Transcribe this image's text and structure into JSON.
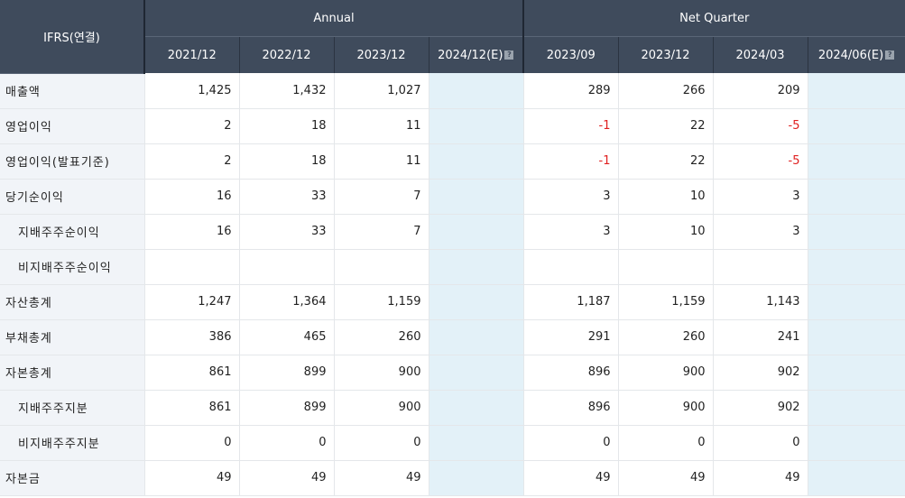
{
  "header": {
    "corner": "IFRS(연결)",
    "annual_label": "Annual",
    "quarter_label": "Net Quarter",
    "annual_periods": [
      "2021/12",
      "2022/12",
      "2023/12",
      "2024/12(E)"
    ],
    "quarter_periods": [
      "2023/09",
      "2023/12",
      "2024/03",
      "2024/06(E)"
    ]
  },
  "rows": [
    {
      "label": "매출액",
      "indent": false,
      "annual": [
        "1,425",
        "1,432",
        "1,027",
        ""
      ],
      "quarter": [
        "289",
        "266",
        "209",
        ""
      ]
    },
    {
      "label": "영업이익",
      "indent": false,
      "annual": [
        "2",
        "18",
        "11",
        ""
      ],
      "quarter": [
        "-1",
        "22",
        "-5",
        ""
      ]
    },
    {
      "label": "영업이익(발표기준)",
      "indent": false,
      "annual": [
        "2",
        "18",
        "11",
        ""
      ],
      "quarter": [
        "-1",
        "22",
        "-5",
        ""
      ]
    },
    {
      "label": "당기순이익",
      "indent": false,
      "annual": [
        "16",
        "33",
        "7",
        ""
      ],
      "quarter": [
        "3",
        "10",
        "3",
        ""
      ]
    },
    {
      "label": "지배주주순이익",
      "indent": true,
      "annual": [
        "16",
        "33",
        "7",
        ""
      ],
      "quarter": [
        "3",
        "10",
        "3",
        ""
      ]
    },
    {
      "label": "비지배주주순이익",
      "indent": true,
      "annual": [
        "",
        "",
        "",
        ""
      ],
      "quarter": [
        "",
        "",
        "",
        ""
      ]
    },
    {
      "label": "자산총계",
      "indent": false,
      "annual": [
        "1,247",
        "1,364",
        "1,159",
        ""
      ],
      "quarter": [
        "1,187",
        "1,159",
        "1,143",
        ""
      ]
    },
    {
      "label": "부채총계",
      "indent": false,
      "annual": [
        "386",
        "465",
        "260",
        ""
      ],
      "quarter": [
        "291",
        "260",
        "241",
        ""
      ]
    },
    {
      "label": "자본총계",
      "indent": false,
      "annual": [
        "861",
        "899",
        "900",
        ""
      ],
      "quarter": [
        "896",
        "900",
        "902",
        ""
      ]
    },
    {
      "label": "지배주주지분",
      "indent": true,
      "annual": [
        "861",
        "899",
        "900",
        ""
      ],
      "quarter": [
        "896",
        "900",
        "902",
        ""
      ]
    },
    {
      "label": "비지배주주지분",
      "indent": true,
      "annual": [
        "0",
        "0",
        "0",
        ""
      ],
      "quarter": [
        "0",
        "0",
        "0",
        ""
      ]
    },
    {
      "label": "자본금",
      "indent": false,
      "annual": [
        "49",
        "49",
        "49",
        ""
      ],
      "quarter": [
        "49",
        "49",
        "49",
        ""
      ]
    }
  ],
  "colors": {
    "header_bg": "#3f4b5c",
    "label_bg": "#f1f4f8",
    "estimate_bg": "#e3f1f8",
    "negative": "#e02020"
  },
  "icons": {
    "estimate_info": "help-icon"
  }
}
